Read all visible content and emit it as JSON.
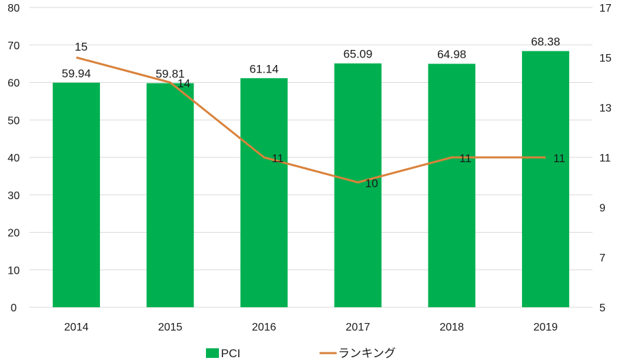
{
  "chart_data": {
    "type": "bar+line",
    "categories": [
      "2014",
      "2015",
      "2016",
      "2017",
      "2018",
      "2019"
    ],
    "series": [
      {
        "name": "PCI",
        "type": "bar",
        "axis": "left",
        "color": "#00b050",
        "values": [
          59.94,
          59.81,
          61.14,
          65.09,
          64.98,
          68.38
        ],
        "labels": [
          "59.94",
          "59.81",
          "61.14",
          "65.09",
          "64.98",
          "68.38"
        ]
      },
      {
        "name": "ランキング",
        "type": "line",
        "axis": "right",
        "color": "#d9823b",
        "values": [
          15,
          14,
          11,
          10,
          11,
          11
        ],
        "labels": [
          "15",
          "14",
          "11",
          "10",
          "11",
          "11"
        ]
      }
    ],
    "y_left": {
      "min": 0,
      "max": 80,
      "ticks": [
        "0",
        "10",
        "20",
        "30",
        "40",
        "50",
        "60",
        "70",
        "80"
      ]
    },
    "y_right": {
      "min": 5,
      "max": 17,
      "ticks": [
        "5",
        "7",
        "9",
        "11",
        "13",
        "15",
        "17"
      ]
    },
    "grid": true,
    "legend": {
      "position": "bottom",
      "items": [
        "PCI",
        "ランキング"
      ]
    },
    "title": "",
    "xlabel": "",
    "ylabel": ""
  }
}
